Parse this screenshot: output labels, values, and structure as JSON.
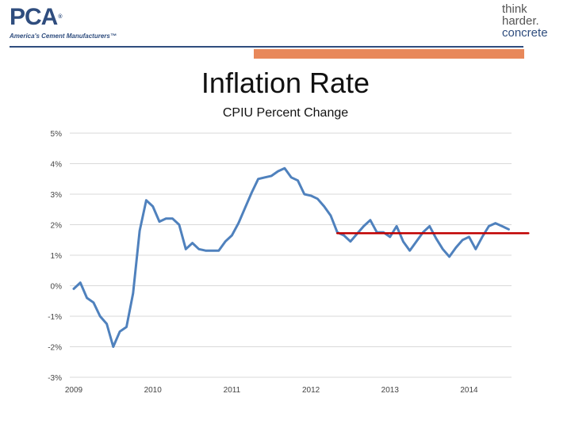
{
  "header": {
    "pca_logo": "PCA",
    "pca_tagline": "America's Cement Manufacturers™",
    "right_logo_lines": [
      "think",
      "harder.",
      "concrete"
    ],
    "brand_colors": {
      "navy": "#2f4d7e",
      "orange": "#e8885a"
    }
  },
  "page_title": "Inflation Rate",
  "chart_data": {
    "type": "line",
    "title": "CPIU Percent Change",
    "xlabel": "",
    "ylabel": "",
    "ylim": [
      -3,
      5
    ],
    "yticks": [
      "5%",
      "4%",
      "3%",
      "2%",
      "1%",
      "0%",
      "-1%",
      "-2%",
      "-3%"
    ],
    "yticks_values": [
      5,
      4,
      3,
      2,
      1,
      0,
      -1,
      -2,
      -3
    ],
    "xticks": [
      "2009",
      "2010",
      "2011",
      "2012",
      "2013",
      "2014"
    ],
    "x_start_year": 2009,
    "x_range_years": [
      2009,
      2014.58
    ],
    "grid": true,
    "series": [
      {
        "color": "#4f81bd",
        "x": [
          2009.0,
          2009.083,
          2009.167,
          2009.25,
          2009.333,
          2009.417,
          2009.5,
          2009.583,
          2009.667,
          2009.75,
          2009.833,
          2009.917,
          2010.0,
          2010.083,
          2010.167,
          2010.25,
          2010.333,
          2010.417,
          2010.5,
          2010.583,
          2010.667,
          2010.75,
          2010.833,
          2010.917,
          2011.0,
          2011.083,
          2011.167,
          2011.25,
          2011.333,
          2011.417,
          2011.5,
          2011.583,
          2011.667,
          2011.75,
          2011.833,
          2011.917,
          2012.0,
          2012.083,
          2012.167,
          2012.25,
          2012.333,
          2012.417,
          2012.5,
          2012.583,
          2012.667,
          2012.75,
          2012.833,
          2012.917,
          2013.0,
          2013.083,
          2013.167,
          2013.25,
          2013.333,
          2013.417,
          2013.5,
          2013.583,
          2013.667,
          2013.75,
          2013.833,
          2013.917,
          2014.0,
          2014.083,
          2014.167,
          2014.25,
          2014.333,
          2014.417,
          2014.5
        ],
        "values": [
          -0.1,
          0.1,
          -0.4,
          -0.55,
          -1.0,
          -1.25,
          -2.0,
          -1.5,
          -1.35,
          -0.25,
          1.8,
          2.8,
          2.6,
          2.1,
          2.2,
          2.2,
          2.0,
          1.2,
          1.4,
          1.2,
          1.15,
          1.15,
          1.15,
          1.45,
          1.65,
          2.05,
          2.55,
          3.05,
          3.5,
          3.55,
          3.6,
          3.75,
          3.85,
          3.55,
          3.45,
          3.0,
          2.95,
          2.85,
          2.6,
          2.3,
          1.75,
          1.65,
          1.45,
          1.7,
          1.95,
          2.15,
          1.75,
          1.75,
          1.6,
          1.95,
          1.45,
          1.15,
          1.45,
          1.75,
          1.95,
          1.55,
          1.2,
          0.95,
          1.25,
          1.5,
          1.6,
          1.2,
          1.6,
          1.95,
          2.05,
          1.95,
          1.85
        ]
      },
      {
        "color": "#c00000",
        "x": [
          2012.333,
          2014.75
        ],
        "values": [
          1.72,
          1.72
        ]
      }
    ]
  }
}
